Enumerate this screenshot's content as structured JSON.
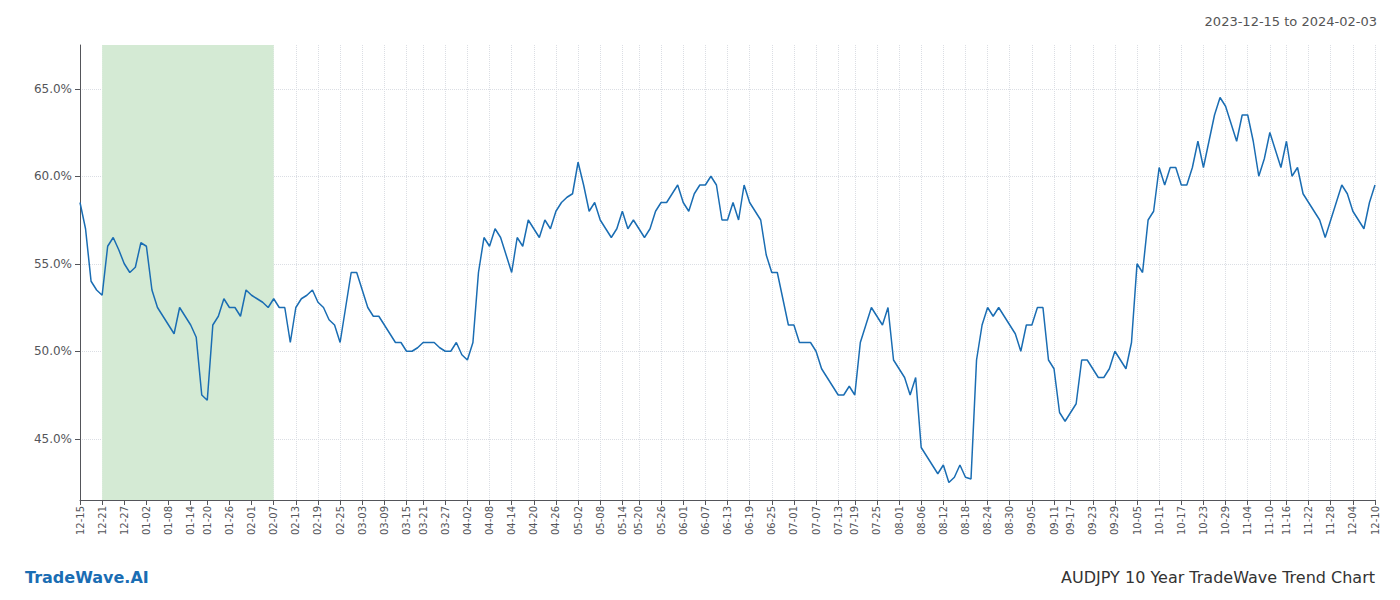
{
  "chart_data": {
    "type": "line",
    "title": "AUDJPY 10 Year TradeWave Trend Chart",
    "subtitle": "2023-12-15 to 2024-02-03",
    "annotations": [
      "TradeWave.AI"
    ],
    "color": "#1a6db3",
    "grid": true,
    "highlight": {
      "from": "12-21",
      "to": "02-07",
      "color": "#d4ead4"
    },
    "ylim": [
      41.5,
      67.5
    ],
    "yticks": [
      {
        "value": 45.0,
        "label": "45.0%"
      },
      {
        "value": 50.0,
        "label": "50.0%"
      },
      {
        "value": 55.0,
        "label": "55.0%"
      },
      {
        "value": 60.0,
        "label": "60.0%"
      },
      {
        "value": 65.0,
        "label": "65.0%"
      }
    ],
    "categories": [
      "12-15",
      null,
      null,
      null,
      "12-21",
      null,
      null,
      null,
      "12-27",
      null,
      null,
      null,
      "01-02",
      null,
      null,
      null,
      "01-08",
      null,
      null,
      null,
      "01-14",
      null,
      null,
      "01-20",
      null,
      null,
      null,
      "01-26",
      null,
      null,
      null,
      "02-01",
      null,
      null,
      null,
      "02-07",
      null,
      null,
      null,
      "02-13",
      null,
      null,
      null,
      "02-19",
      null,
      null,
      null,
      "02-25",
      null,
      null,
      null,
      "03-03",
      null,
      null,
      null,
      "03-09",
      null,
      null,
      null,
      "03-15",
      null,
      null,
      "03-21",
      null,
      null,
      null,
      "03-27",
      null,
      null,
      null,
      "04-02",
      null,
      null,
      null,
      "04-08",
      null,
      null,
      null,
      "04-14",
      null,
      null,
      null,
      "04-20",
      null,
      null,
      null,
      "04-26",
      null,
      null,
      null,
      "05-02",
      null,
      null,
      null,
      "05-08",
      null,
      null,
      null,
      "05-14",
      null,
      null,
      "05-20",
      null,
      null,
      null,
      "05-26",
      null,
      null,
      null,
      "06-01",
      null,
      null,
      null,
      "06-07",
      null,
      null,
      null,
      "06-13",
      null,
      null,
      null,
      "06-19",
      null,
      null,
      null,
      "06-25",
      null,
      null,
      null,
      "07-01",
      null,
      null,
      null,
      "07-07",
      null,
      null,
      null,
      "07-13",
      null,
      null,
      "07-19",
      null,
      null,
      null,
      "07-25",
      null,
      null,
      null,
      "08-01",
      null,
      null,
      null,
      "08-06",
      null,
      null,
      null,
      "08-12",
      null,
      null,
      null,
      "08-18",
      null,
      null,
      null,
      "08-24",
      null,
      null,
      null,
      "08-30",
      null,
      null,
      null,
      "09-05",
      null,
      null,
      null,
      "09-11",
      null,
      null,
      "09-17",
      null,
      null,
      null,
      "09-23",
      null,
      null,
      null,
      "09-29",
      null,
      null,
      null,
      "10-05",
      null,
      null,
      null,
      "10-11",
      null,
      null,
      null,
      "10-17",
      null,
      null,
      null,
      "10-23",
      null,
      null,
      null,
      "10-29",
      null,
      null,
      null,
      "11-04",
      null,
      null,
      null,
      "11-10",
      null,
      null,
      "11-16",
      null,
      null,
      null,
      "11-22",
      null,
      null,
      null,
      "11-28",
      null,
      null,
      null,
      "12-04",
      null,
      null,
      null,
      "12-10"
    ],
    "values": [
      58.5,
      57.0,
      54.0,
      53.5,
      53.2,
      56.0,
      56.5,
      55.8,
      55.0,
      54.5,
      54.8,
      56.2,
      56.0,
      53.5,
      52.5,
      52.0,
      51.5,
      51.0,
      52.5,
      52.0,
      51.5,
      50.8,
      47.5,
      47.2,
      51.5,
      52.0,
      53.0,
      52.5,
      52.5,
      52.0,
      53.5,
      53.2,
      53.0,
      52.8,
      52.5,
      53.0,
      52.5,
      52.5,
      50.5,
      52.5,
      53.0,
      53.2,
      53.5,
      52.8,
      52.5,
      51.8,
      51.5,
      50.5,
      52.5,
      54.5,
      54.5,
      53.5,
      52.5,
      52.0,
      52.0,
      51.5,
      51.0,
      50.5,
      50.5,
      50.0,
      50.0,
      50.2,
      50.5,
      50.5,
      50.5,
      50.2,
      50.0,
      50.0,
      50.5,
      49.8,
      49.5,
      50.5,
      54.5,
      56.5,
      56.0,
      57.0,
      56.5,
      55.5,
      54.5,
      56.5,
      56.0,
      57.5,
      57.0,
      56.5,
      57.5,
      57.0,
      58.0,
      58.5,
      58.8,
      59.0,
      60.8,
      59.5,
      58.0,
      58.5,
      57.5,
      57.0,
      56.5,
      57.0,
      58.0,
      57.0,
      57.5,
      57.0,
      56.5,
      57.0,
      58.0,
      58.5,
      58.5,
      59.0,
      59.5,
      58.5,
      58.0,
      59.0,
      59.5,
      59.5,
      60.0,
      59.5,
      57.5,
      57.5,
      58.5,
      57.5,
      59.5,
      58.5,
      58.0,
      57.5,
      55.5,
      54.5,
      54.5,
      53.0,
      51.5,
      51.5,
      50.5,
      50.5,
      50.5,
      50.0,
      49.0,
      48.5,
      48.0,
      47.5,
      47.5,
      48.0,
      47.5,
      50.5,
      51.5,
      52.5,
      52.0,
      51.5,
      52.5,
      49.5,
      49.0,
      48.5,
      47.5,
      48.5,
      44.5,
      44.0,
      43.5,
      43.0,
      43.5,
      42.5,
      42.8,
      43.5,
      42.8,
      42.7,
      49.5,
      51.5,
      52.5,
      52.0,
      52.5,
      52.0,
      51.5,
      51.0,
      50.0,
      51.5,
      51.5,
      52.5,
      52.5,
      49.5,
      49.0,
      46.5,
      46.0,
      46.5,
      47.0,
      49.5,
      49.5,
      49.0,
      48.5,
      48.5,
      49.0,
      50.0,
      49.5,
      49.0,
      50.5,
      55.0,
      54.5,
      57.5,
      58.0,
      60.5,
      59.5,
      60.5,
      60.5,
      59.5,
      59.5,
      60.5,
      62.0,
      60.5,
      62.0,
      63.5,
      64.5,
      64.0,
      63.0,
      62.0,
      63.5,
      63.5,
      62.0,
      60.0,
      61.0,
      62.5,
      61.5,
      60.5,
      62.0,
      60.0,
      60.5,
      59.0,
      58.5,
      58.0,
      57.5,
      56.5,
      57.5,
      58.5,
      59.5,
      59.0,
      58.0,
      57.5,
      57.0,
      58.5,
      59.5
    ]
  }
}
